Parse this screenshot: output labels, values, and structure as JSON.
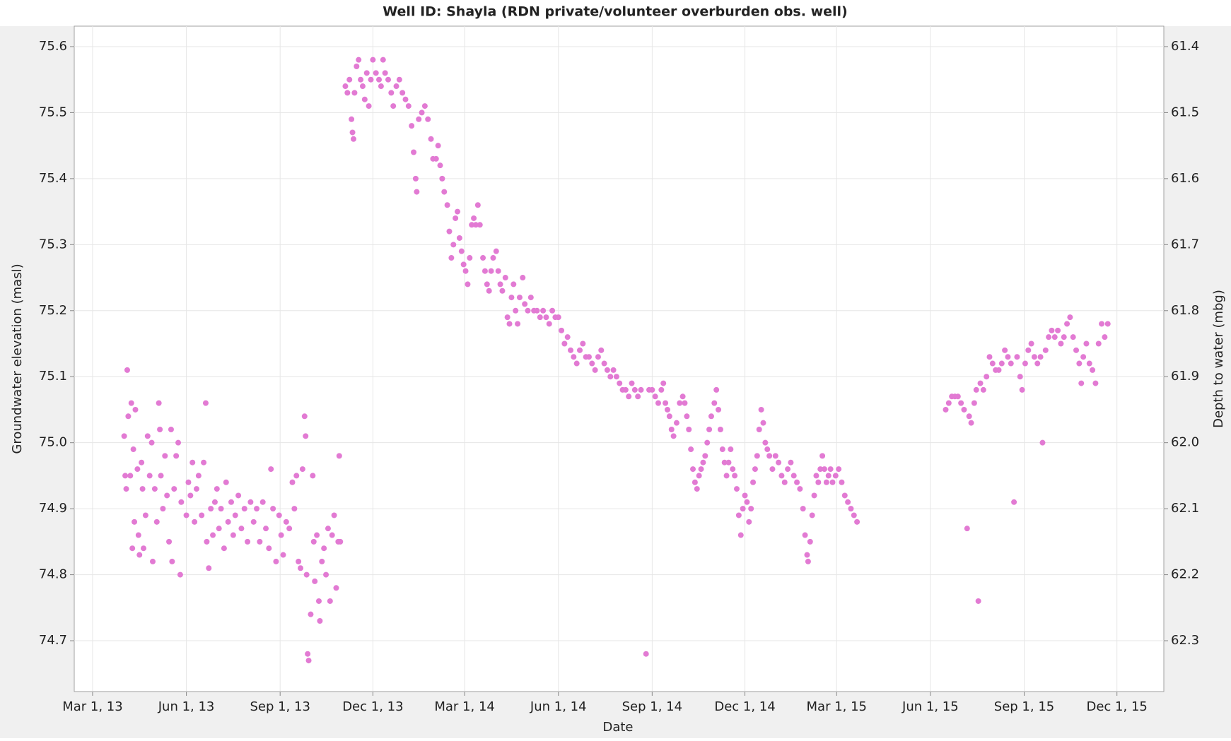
{
  "chart_data": {
    "type": "scatter",
    "title": "Well ID: Shayla (RDN private/volunteer overburden obs. well)",
    "xlabel": "Date",
    "ylabel": "Groundwater elevation (masl)",
    "y2label": "Depth to water (mbg)",
    "color": "#e27ad3",
    "grid": true,
    "xlim": [
      "2013-02-11",
      "2016-01-16"
    ],
    "xticks": [
      {
        "value": "2013-03-01",
        "label": "Mar 1, 13"
      },
      {
        "value": "2013-06-01",
        "label": "Jun 1, 13"
      },
      {
        "value": "2013-09-01",
        "label": "Sep 1, 13"
      },
      {
        "value": "2013-12-01",
        "label": "Dec 1, 13"
      },
      {
        "value": "2014-03-01",
        "label": "Mar 1, 14"
      },
      {
        "value": "2014-06-01",
        "label": "Jun 1, 14"
      },
      {
        "value": "2014-09-01",
        "label": "Sep 1, 14"
      },
      {
        "value": "2014-12-01",
        "label": "Dec 1, 14"
      },
      {
        "value": "2015-03-01",
        "label": "Mar 1, 15"
      },
      {
        "value": "2015-06-01",
        "label": "Jun 1, 15"
      },
      {
        "value": "2015-09-01",
        "label": "Sep 1, 15"
      },
      {
        "value": "2015-12-01",
        "label": "Dec 1, 15"
      }
    ],
    "ylim": [
      74.623,
      75.631
    ],
    "yticks": [
      74.7,
      74.8,
      74.9,
      {
        "value": 75,
        "label": "75.0"
      },
      75.1,
      75.2,
      75.3,
      75.4,
      75.5,
      75.6
    ],
    "y2lim": [
      62.377,
      61.369
    ],
    "y2ticks": [
      62.3,
      62.2,
      62.1,
      {
        "value": 62,
        "label": "62.0"
      },
      61.9,
      61.8,
      61.7,
      61.6,
      61.5,
      61.4
    ],
    "x": [
      "2013-04-01",
      "2013-04-02",
      "2013-04-03",
      "2013-04-04",
      "2013-04-05",
      "2013-04-07",
      "2013-04-08",
      "2013-04-09",
      "2013-04-10",
      "2013-04-11",
      "2013-04-12",
      "2013-04-14",
      "2013-04-15",
      "2013-04-16",
      "2013-04-18",
      "2013-04-19",
      "2013-04-20",
      "2013-04-22",
      "2013-04-24",
      "2013-04-26",
      "2013-04-28",
      "2013-04-29",
      "2013-05-01",
      "2013-05-03",
      "2013-05-05",
      "2013-05-06",
      "2013-05-07",
      "2013-05-09",
      "2013-05-11",
      "2013-05-13",
      "2013-05-15",
      "2013-05-17",
      "2013-05-18",
      "2013-05-20",
      "2013-05-22",
      "2013-05-24",
      "2013-05-26",
      "2013-05-27",
      "2013-06-01",
      "2013-06-03",
      "2013-06-05",
      "2013-06-07",
      "2013-06-09",
      "2013-06-11",
      "2013-06-13",
      "2013-06-16",
      "2013-06-18",
      "2013-06-20",
      "2013-06-21",
      "2013-06-23",
      "2013-06-25",
      "2013-06-27",
      "2013-06-29",
      "2013-07-01",
      "2013-07-03",
      "2013-07-05",
      "2013-07-08",
      "2013-07-10",
      "2013-07-12",
      "2013-07-15",
      "2013-07-17",
      "2013-07-19",
      "2013-07-22",
      "2013-07-25",
      "2013-07-28",
      "2013-07-31",
      "2013-08-03",
      "2013-08-06",
      "2013-08-09",
      "2013-08-12",
      "2013-08-15",
      "2013-08-18",
      "2013-08-21",
      "2013-08-23",
      "2013-08-25",
      "2013-08-28",
      "2013-08-31",
      "2013-09-02",
      "2013-09-04",
      "2013-09-07",
      "2013-09-10",
      "2013-09-13",
      "2013-09-15",
      "2013-09-17",
      "2013-09-19",
      "2013-09-21",
      "2013-09-23",
      "2013-09-25",
      "2013-09-26",
      "2013-09-27",
      "2013-09-28",
      "2013-09-29",
      "2013-10-01",
      "2013-10-03",
      "2013-10-04",
      "2013-10-05",
      "2013-10-07",
      "2013-10-09",
      "2013-10-10",
      "2013-10-12",
      "2013-10-14",
      "2013-10-16",
      "2013-10-18",
      "2013-10-20",
      "2013-10-22",
      "2013-10-24",
      "2013-10-26",
      "2013-10-28",
      "2013-10-29",
      "2013-10-30",
      "2013-11-04",
      "2013-11-06",
      "2013-11-08",
      "2013-11-10",
      "2013-11-11",
      "2013-11-12",
      "2013-11-13",
      "2013-11-15",
      "2013-11-17",
      "2013-11-19",
      "2013-11-21",
      "2013-11-23",
      "2013-11-25",
      "2013-11-27",
      "2013-11-29",
      "2013-12-01",
      "2013-12-04",
      "2013-12-07",
      "2013-12-09",
      "2013-12-11",
      "2013-12-13",
      "2013-12-16",
      "2013-12-19",
      "2013-12-21",
      "2013-12-24",
      "2013-12-27",
      "2013-12-30",
      "2014-01-02",
      "2014-01-05",
      "2014-01-08",
      "2014-01-10",
      "2014-01-12",
      "2014-01-13",
      "2014-01-15",
      "2014-01-18",
      "2014-01-21",
      "2014-01-24",
      "2014-01-27",
      "2014-01-29",
      "2014-02-01",
      "2014-02-03",
      "2014-02-05",
      "2014-02-07",
      "2014-02-09",
      "2014-02-12",
      "2014-02-14",
      "2014-02-16",
      "2014-02-18",
      "2014-02-20",
      "2014-02-22",
      "2014-02-24",
      "2014-02-26",
      "2014-02-28",
      "2014-03-02",
      "2014-03-04",
      "2014-03-06",
      "2014-03-08",
      "2014-03-10",
      "2014-03-12",
      "2014-03-14",
      "2014-03-16",
      "2014-03-19",
      "2014-03-21",
      "2014-03-23",
      "2014-03-25",
      "2014-03-27",
      "2014-03-29",
      "2014-04-01",
      "2014-04-03",
      "2014-04-05",
      "2014-04-07",
      "2014-04-10",
      "2014-04-12",
      "2014-04-14",
      "2014-04-16",
      "2014-04-18",
      "2014-04-20",
      "2014-04-22",
      "2014-04-24",
      "2014-04-27",
      "2014-04-29",
      "2014-05-02",
      "2014-05-05",
      "2014-05-08",
      "2014-05-11",
      "2014-05-14",
      "2014-05-17",
      "2014-05-20",
      "2014-05-23",
      "2014-05-26",
      "2014-05-29",
      "2014-06-01",
      "2014-06-04",
      "2014-06-07",
      "2014-06-10",
      "2014-06-13",
      "2014-06-16",
      "2014-06-19",
      "2014-06-22",
      "2014-06-25",
      "2014-06-28",
      "2014-07-01",
      "2014-07-04",
      "2014-07-07",
      "2014-07-10",
      "2014-07-13",
      "2014-07-16",
      "2014-07-19",
      "2014-07-22",
      "2014-07-25",
      "2014-07-28",
      "2014-07-31",
      "2014-08-03",
      "2014-08-06",
      "2014-08-09",
      "2014-08-12",
      "2014-08-15",
      "2014-08-18",
      "2014-08-21",
      "2014-08-26",
      "2014-08-29",
      "2014-09-01",
      "2014-09-04",
      "2014-09-07",
      "2014-09-10",
      "2014-09-12",
      "2014-09-14",
      "2014-09-16",
      "2014-09-18",
      "2014-09-20",
      "2014-09-22",
      "2014-09-25",
      "2014-09-28",
      "2014-10-01",
      "2014-10-03",
      "2014-10-05",
      "2014-10-07",
      "2014-10-09",
      "2014-10-11",
      "2014-10-13",
      "2014-10-15",
      "2014-10-17",
      "2014-10-19",
      "2014-10-21",
      "2014-10-23",
      "2014-10-25",
      "2014-10-27",
      "2014-10-29",
      "2014-11-01",
      "2014-11-03",
      "2014-11-05",
      "2014-11-07",
      "2014-11-09",
      "2014-11-11",
      "2014-11-13",
      "2014-11-15",
      "2014-11-17",
      "2014-11-19",
      "2014-11-21",
      "2014-11-23",
      "2014-11-25",
      "2014-11-27",
      "2014-11-29",
      "2014-12-01",
      "2014-12-03",
      "2014-12-05",
      "2014-12-07",
      "2014-12-09",
      "2014-12-11",
      "2014-12-13",
      "2014-12-15",
      "2014-12-17",
      "2014-12-19",
      "2014-12-21",
      "2014-12-23",
      "2014-12-25",
      "2014-12-28",
      "2014-12-31",
      "2015-01-03",
      "2015-01-06",
      "2015-01-09",
      "2015-01-12",
      "2015-01-15",
      "2015-01-18",
      "2015-01-21",
      "2015-01-24",
      "2015-01-27",
      "2015-01-29",
      "2015-01-31",
      "2015-02-01",
      "2015-02-03",
      "2015-02-05",
      "2015-02-07",
      "2015-02-09",
      "2015-02-11",
      "2015-02-13",
      "2015-02-15",
      "2015-02-17",
      "2015-02-19",
      "2015-02-21",
      "2015-02-23",
      "2015-02-25",
      "2015-02-28",
      "2015-03-03",
      "2015-03-06",
      "2015-03-09",
      "2015-03-12",
      "2015-03-15",
      "2015-03-18",
      "2015-03-21",
      "2015-06-16",
      "2015-06-19",
      "2015-06-22",
      "2015-06-25",
      "2015-06-28",
      "2015-07-01",
      "2015-07-04",
      "2015-07-07",
      "2015-07-09",
      "2015-07-11",
      "2015-07-14",
      "2015-07-16",
      "2015-07-18",
      "2015-07-20",
      "2015-07-23",
      "2015-07-26",
      "2015-07-29",
      "2015-08-01",
      "2015-08-04",
      "2015-08-07",
      "2015-08-10",
      "2015-08-13",
      "2015-08-16",
      "2015-08-19",
      "2015-08-22",
      "2015-08-25",
      "2015-08-28",
      "2015-08-30",
      "2015-09-02",
      "2015-09-05",
      "2015-09-08",
      "2015-09-11",
      "2015-09-14",
      "2015-09-17",
      "2015-09-19",
      "2015-09-22",
      "2015-09-25",
      "2015-09-28",
      "2015-10-01",
      "2015-10-04",
      "2015-10-07",
      "2015-10-10",
      "2015-10-13",
      "2015-10-16",
      "2015-10-19",
      "2015-10-22",
      "2015-10-25",
      "2015-10-27",
      "2015-10-29",
      "2015-11-01",
      "2015-11-04",
      "2015-11-07",
      "2015-11-10",
      "2015-11-13",
      "2015-11-16",
      "2015-11-19",
      "2015-11-22"
    ],
    "values": [
      75.01,
      74.95,
      74.93,
      75.11,
      75.04,
      74.95,
      75.06,
      74.84,
      74.99,
      74.88,
      75.05,
      74.96,
      74.86,
      74.83,
      74.97,
      74.93,
      74.84,
      74.89,
      75.01,
      74.95,
      75.0,
      74.82,
      74.93,
      74.88,
      75.06,
      75.02,
      74.95,
      74.9,
      74.98,
      74.92,
      74.85,
      75.02,
      74.82,
      74.93,
      74.98,
      75.0,
      74.8,
      74.91,
      74.89,
      74.94,
      74.92,
      74.97,
      74.88,
      74.93,
      74.95,
      74.89,
      74.97,
      75.06,
      74.85,
      74.81,
      74.9,
      74.86,
      74.91,
      74.93,
      74.87,
      74.9,
      74.84,
      74.94,
      74.88,
      74.91,
      74.86,
      74.89,
      74.92,
      74.87,
      74.9,
      74.85,
      74.91,
      74.88,
      74.9,
      74.85,
      74.91,
      74.87,
      74.84,
      74.96,
      74.9,
      74.82,
      74.89,
      74.86,
      74.83,
      74.88,
      74.87,
      74.94,
      74.9,
      74.95,
      74.82,
      74.81,
      74.96,
      75.04,
      75.01,
      74.8,
      74.68,
      74.67,
      74.74,
      74.95,
      74.85,
      74.79,
      74.86,
      74.76,
      74.73,
      74.82,
      74.84,
      74.8,
      74.87,
      74.76,
      74.86,
      74.89,
      74.78,
      74.85,
      74.98,
      74.85,
      75.54,
      75.53,
      75.55,
      75.49,
      75.47,
      75.46,
      75.53,
      75.57,
      75.58,
      75.55,
      75.54,
      75.52,
      75.56,
      75.51,
      75.55,
      75.58,
      75.56,
      75.55,
      75.54,
      75.58,
      75.56,
      75.55,
      75.53,
      75.51,
      75.54,
      75.55,
      75.53,
      75.52,
      75.51,
      75.48,
      75.44,
      75.4,
      75.38,
      75.49,
      75.5,
      75.51,
      75.49,
      75.46,
      75.43,
      75.43,
      75.45,
      75.42,
      75.4,
      75.38,
      75.36,
      75.32,
      75.28,
      75.3,
      75.34,
      75.35,
      75.31,
      75.29,
      75.27,
      75.26,
      75.24,
      75.28,
      75.33,
      75.34,
      75.33,
      75.36,
      75.33,
      75.28,
      75.26,
      75.24,
      75.23,
      75.26,
      75.28,
      75.29,
      75.26,
      75.24,
      75.23,
      75.25,
      75.19,
      75.18,
      75.22,
      75.24,
      75.2,
      75.18,
      75.22,
      75.25,
      75.21,
      75.2,
      75.22,
      75.2,
      75.2,
      75.19,
      75.2,
      75.19,
      75.18,
      75.2,
      75.19,
      75.19,
      75.17,
      75.15,
      75.16,
      75.14,
      75.13,
      75.12,
      75.14,
      75.15,
      75.13,
      75.13,
      75.12,
      75.11,
      75.13,
      75.14,
      75.12,
      75.11,
      75.1,
      75.11,
      75.1,
      75.09,
      75.08,
      75.08,
      75.07,
      75.09,
      75.08,
      75.07,
      75.08,
      74.68,
      75.08,
      75.08,
      75.07,
      75.06,
      75.08,
      75.09,
      75.06,
      75.05,
      75.04,
      75.02,
      75.01,
      75.03,
      75.06,
      75.07,
      75.06,
      75.04,
      75.02,
      74.99,
      74.96,
      74.94,
      74.93,
      74.95,
      74.96,
      74.97,
      74.98,
      75.0,
      75.02,
      75.04,
      75.06,
      75.08,
      75.05,
      75.02,
      74.99,
      74.97,
      74.95,
      74.97,
      74.99,
      74.96,
      74.95,
      74.93,
      74.89,
      74.86,
      74.9,
      74.92,
      74.91,
      74.88,
      74.9,
      74.94,
      74.96,
      74.98,
      75.02,
      75.05,
      75.03,
      75.0,
      74.99,
      74.98,
      74.96,
      74.98,
      74.97,
      74.95,
      74.94,
      74.96,
      74.97,
      74.95,
      74.94,
      74.93,
      74.9,
      74.86,
      74.83,
      74.82,
      74.85,
      74.89,
      74.92,
      74.95,
      74.94,
      74.96,
      74.98,
      74.96,
      74.94,
      74.95,
      74.96,
      74.94,
      74.95,
      74.96,
      74.94,
      74.92,
      74.91,
      74.9,
      74.89,
      74.88,
      75.05,
      75.06,
      75.07,
      75.07,
      75.07,
      75.06,
      75.05,
      74.87,
      75.04,
      75.03,
      75.06,
      75.08,
      74.76,
      75.09,
      75.08,
      75.1,
      75.13,
      75.12,
      75.11,
      75.11,
      75.12,
      75.14,
      75.13,
      75.12,
      74.91,
      75.13,
      75.1,
      75.08,
      75.12,
      75.14,
      75.15,
      75.13,
      75.12,
      75.13,
      75.0,
      75.14,
      75.16,
      75.17,
      75.16,
      75.17,
      75.15,
      75.16,
      75.18,
      75.19,
      75.16,
      75.14,
      75.12,
      75.09,
      75.13,
      75.15,
      75.12,
      75.11,
      75.09,
      75.15,
      75.18,
      75.16,
      75.18
    ]
  }
}
